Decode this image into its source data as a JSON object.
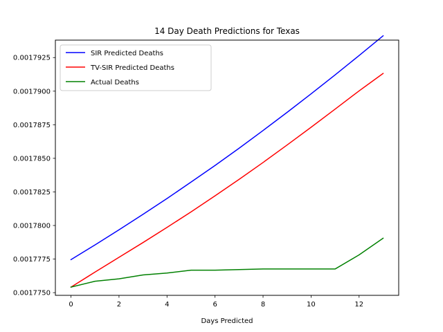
{
  "chart_data": {
    "type": "line",
    "title": "14 Day Death Predictions for Texas",
    "xlabel": "Days Predicted",
    "ylabel": "",
    "x": [
      0,
      1,
      2,
      3,
      4,
      5,
      6,
      7,
      8,
      9,
      10,
      11,
      12,
      13
    ],
    "xlim": [
      -0.65,
      13.65
    ],
    "ylim": [
      0.0017748,
      0.0017938
    ],
    "x_ticks": [
      0,
      2,
      4,
      6,
      8,
      10,
      12
    ],
    "x_tick_labels": [
      "0",
      "2",
      "4",
      "6",
      "8",
      "10",
      "12"
    ],
    "y_ticks": [
      0.001775,
      0.0017775,
      0.00178,
      0.0017825,
      0.001785,
      0.0017875,
      0.00179,
      0.0017925
    ],
    "y_tick_labels": [
      "0.0017750",
      "0.0017775",
      "0.0017800",
      "0.0017825",
      "0.0017850",
      "0.0017875",
      "0.0017900",
      "0.0017925"
    ],
    "grid": false,
    "legend_position": "top-left",
    "series": [
      {
        "name": "SIR Predicted Deaths",
        "color": "#0000ff",
        "values": [
          0.00177746,
          0.00177855,
          0.00177968,
          0.00178083,
          0.00178201,
          0.00178323,
          0.00178447,
          0.00178575,
          0.00178707,
          0.00178842,
          0.0017898,
          0.00179121,
          0.00179265,
          0.00179412
        ]
      },
      {
        "name": "TV-SIR Predicted Deaths",
        "color": "#ff0000",
        "values": [
          0.00177541,
          0.00177653,
          0.00177763,
          0.00177873,
          0.00177986,
          0.00178101,
          0.00178221,
          0.00178343,
          0.00178469,
          0.00178599,
          0.00178731,
          0.00178866,
          0.00179002,
          0.00179132
        ]
      },
      {
        "name": "Actual Deaths",
        "color": "#008000",
        "values": [
          0.00177541,
          0.00177585,
          0.00177603,
          0.00177632,
          0.00177646,
          0.00177667,
          0.00177667,
          0.00177672,
          0.00177676,
          0.00177676,
          0.00177676,
          0.00177676,
          0.00177781,
          0.00177905
        ]
      }
    ]
  }
}
